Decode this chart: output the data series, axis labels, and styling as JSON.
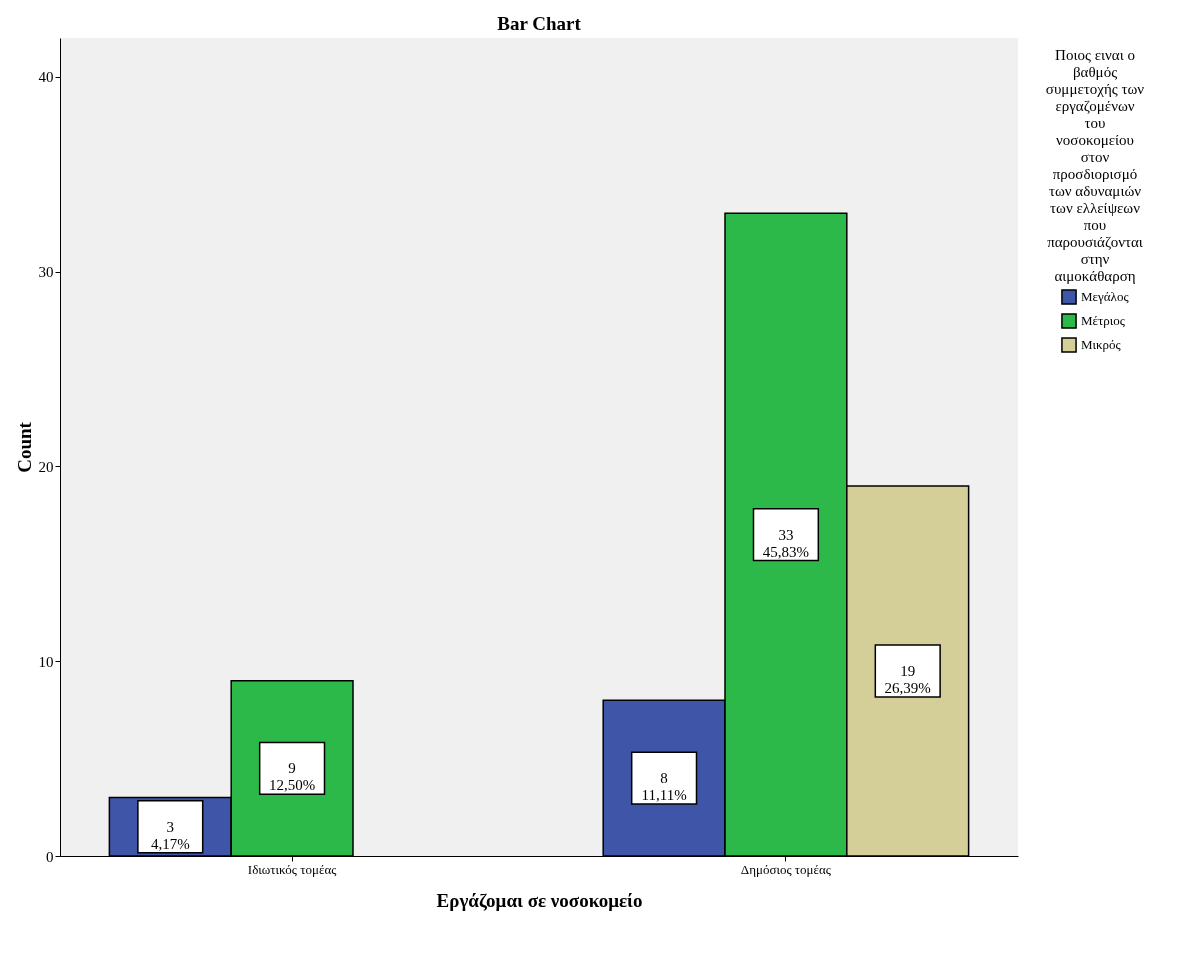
{
  "chart_data": {
    "type": "bar",
    "title": "Bar Chart",
    "xlabel": "Εργάζομαι σε νοσοκομείο",
    "ylabel": "Count",
    "legend_title": "Ποιος ειναι ο βαθμός συμμετοχής των εργαζομένων του νοσοκομείου στον προσδιορισμό των αδυναμιών των ελλείψεων που παρουσιάζονται στην αιμοκάθαρση",
    "categories": [
      "Ιδιωτικός τομέας",
      "Δημόσιος τομέας"
    ],
    "series": [
      {
        "name": "Μεγάλος",
        "color": "#3f56a8",
        "values": [
          3,
          8
        ],
        "value_labels": [
          "3\n4,17%",
          "8\n11,11%"
        ]
      },
      {
        "name": "Μέτριος",
        "color": "#2db84a",
        "values": [
          9,
          33
        ],
        "value_labels": [
          "9\n12,50%",
          "33\n45,83%"
        ]
      },
      {
        "name": "Μικρός",
        "color": "#d4cf98",
        "values": [
          null,
          19
        ],
        "value_labels": [
          null,
          "19\n26,39%"
        ]
      }
    ],
    "ylim": [
      0,
      42
    ],
    "yticks": [
      0,
      10,
      20,
      30,
      40
    ],
    "grid": false,
    "legend": "right"
  }
}
